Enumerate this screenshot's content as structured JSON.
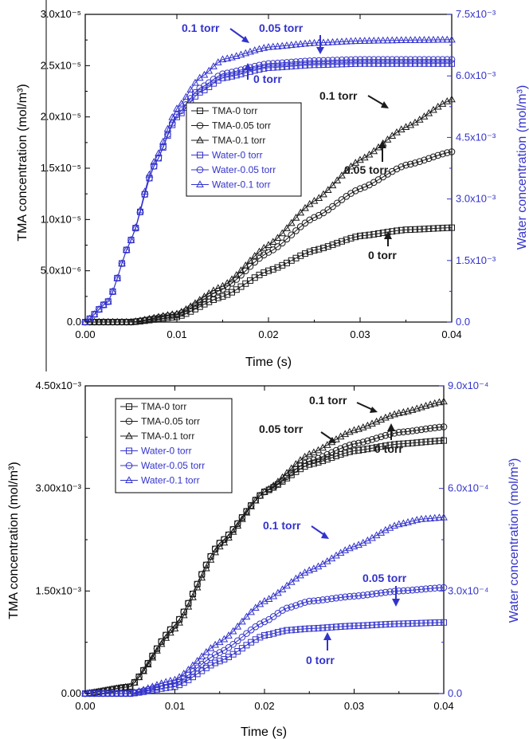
{
  "colors": {
    "tma": "#1a1a1a",
    "water": "#3333cc",
    "axis": "#000000",
    "right_axis": "#3333cc"
  },
  "chart_data": [
    {
      "type": "line",
      "xlabel": "Time (s)",
      "ylabel": "TMA concentration (mol/m³)",
      "y2label": "Water concentration (mol/m³)",
      "xlim": [
        0,
        0.04
      ],
      "x_ticks": [
        "0.00",
        "0.01",
        "0.02",
        "0.03",
        "0.04"
      ],
      "ylim": [
        0,
        3e-05
      ],
      "y_ticks": [
        "0.0",
        "5.0x10⁻⁶",
        "1.0x10⁻⁵",
        "1.5x10⁻⁵",
        "2.0x10⁻⁵",
        "2.5x10⁻⁵",
        "3.0x10⁻⁵"
      ],
      "y2lim": [
        0,
        0.0075
      ],
      "y2_ticks": [
        "0.0",
        "1.5x10⁻³",
        "3.0x10⁻³",
        "4.5x10⁻³",
        "6.0x10⁻³",
        "7.5x10⁻³"
      ],
      "grid": false,
      "legend_position": "center-left",
      "series": [
        {
          "name": "TMA-0 torr",
          "marker": "square",
          "axis": "left",
          "color": "#1a1a1a",
          "x": [
            0,
            0.005,
            0.01,
            0.015,
            0.02,
            0.025,
            0.03,
            0.035,
            0.04
          ],
          "values": [
            0,
            0,
            5e-07,
            2.5e-06,
            5e-06,
            7e-06,
            8.4e-06,
            9e-06,
            9.2e-06
          ]
        },
        {
          "name": "TMA-0.05 torr",
          "marker": "circle",
          "axis": "left",
          "color": "#1a1a1a",
          "x": [
            0,
            0.005,
            0.01,
            0.015,
            0.02,
            0.025,
            0.03,
            0.035,
            0.04
          ],
          "values": [
            0,
            0,
            7e-07,
            3.2e-06,
            6.8e-06,
            1.02e-05,
            1.3e-05,
            1.53e-05,
            1.66e-05
          ]
        },
        {
          "name": "TMA-0.1 torr",
          "marker": "triangle",
          "axis": "left",
          "color": "#1a1a1a",
          "x": [
            0,
            0.005,
            0.01,
            0.015,
            0.02,
            0.025,
            0.03,
            0.035,
            0.04
          ],
          "values": [
            0,
            0,
            8e-07,
            3.5e-06,
            7.5e-06,
            1.18e-05,
            1.58e-05,
            1.9e-05,
            2.17e-05
          ]
        },
        {
          "name": "Water-0 torr",
          "marker": "square",
          "axis": "right",
          "color": "#3333cc",
          "x": [
            0,
            0.0025,
            0.005,
            0.0075,
            0.01,
            0.0125,
            0.015,
            0.02,
            0.025,
            0.03,
            0.035,
            0.04
          ],
          "values": [
            0,
            0.0005,
            0.002,
            0.0038,
            0.005,
            0.0056,
            0.00595,
            0.0062,
            0.00627,
            0.0063,
            0.0063,
            0.0063
          ]
        },
        {
          "name": "Water-0.05 torr",
          "marker": "circle",
          "axis": "right",
          "color": "#3333cc",
          "x": [
            0,
            0.0025,
            0.005,
            0.0075,
            0.01,
            0.0125,
            0.015,
            0.02,
            0.025,
            0.03,
            0.035,
            0.04
          ],
          "values": [
            0,
            0.0005,
            0.002,
            0.0038,
            0.00505,
            0.0057,
            0.00605,
            0.0063,
            0.00637,
            0.0064,
            0.0064,
            0.0064
          ]
        },
        {
          "name": "Water-0.1 torr",
          "marker": "triangle",
          "axis": "right",
          "color": "#3333cc",
          "x": [
            0,
            0.0025,
            0.005,
            0.0075,
            0.01,
            0.0125,
            0.015,
            0.02,
            0.025,
            0.03,
            0.035,
            0.04
          ],
          "values": [
            0,
            0.0005,
            0.002,
            0.0039,
            0.0052,
            0.00595,
            0.0064,
            0.0067,
            0.0068,
            0.00685,
            0.00687,
            0.00688
          ]
        }
      ],
      "annotations": [
        {
          "text": "0.1 torr",
          "color": "#3333cc"
        },
        {
          "text": "0.05 torr",
          "color": "#3333cc"
        },
        {
          "text": "0 torr",
          "color": "#3333cc"
        },
        {
          "text": "0.1 torr",
          "color": "#1a1a1a"
        },
        {
          "text": "0.05 torr",
          "color": "#1a1a1a"
        },
        {
          "text": "0 torr",
          "color": "#1a1a1a"
        }
      ]
    },
    {
      "type": "line",
      "xlabel": "Time (s)",
      "ylabel": "TMA concentration (mol/m³)",
      "y2label": "Water concentration (mol/m³)",
      "xlim": [
        0,
        0.04
      ],
      "x_ticks": [
        "0.00",
        "0.01",
        "0.02",
        "0.03",
        "0.04"
      ],
      "ylim": [
        0,
        0.0045
      ],
      "y_ticks": [
        "0.00",
        "1.50x10⁻³",
        "3.00x10⁻³",
        "4.50x10⁻³"
      ],
      "y2lim": [
        0,
        0.0009
      ],
      "y2_ticks": [
        "0.0",
        "3.0x10⁻⁴",
        "6.0x10⁻⁴",
        "9.0x10⁻⁴"
      ],
      "grid": false,
      "legend_position": "top-left",
      "series": [
        {
          "name": "TMA-0 torr",
          "marker": "square",
          "axis": "left",
          "color": "#1a1a1a",
          "x": [
            0,
            0.005,
            0.01,
            0.015,
            0.02,
            0.025,
            0.03,
            0.035,
            0.04
          ],
          "values": [
            0,
            0.0001,
            0.001,
            0.0022,
            0.00295,
            0.00335,
            0.00355,
            0.00365,
            0.0037
          ]
        },
        {
          "name": "TMA-0.05 torr",
          "marker": "circle",
          "axis": "left",
          "color": "#1a1a1a",
          "x": [
            0,
            0.005,
            0.01,
            0.015,
            0.02,
            0.025,
            0.03,
            0.035,
            0.04
          ],
          "values": [
            0,
            0.0001,
            0.001,
            0.0022,
            0.00295,
            0.0034,
            0.00365,
            0.00382,
            0.0039
          ]
        },
        {
          "name": "TMA-0.1 torr",
          "marker": "triangle",
          "axis": "left",
          "color": "#1a1a1a",
          "x": [
            0,
            0.005,
            0.01,
            0.015,
            0.02,
            0.025,
            0.03,
            0.035,
            0.04
          ],
          "values": [
            0,
            0.0001,
            0.00095,
            0.00215,
            0.00295,
            0.0035,
            0.00385,
            0.0041,
            0.00427
          ]
        },
        {
          "name": "Water-0 torr",
          "marker": "square",
          "axis": "right",
          "color": "#3333cc",
          "x": [
            0,
            0.005,
            0.01,
            0.015,
            0.02,
            0.0225,
            0.025,
            0.03,
            0.035,
            0.04
          ],
          "values": [
            0,
            0,
            2e-05,
            9.5e-05,
            0.00017,
            0.000185,
            0.00019,
            0.000198,
            0.000204,
            0.000208
          ]
        },
        {
          "name": "Water-0.05 torr",
          "marker": "circle",
          "axis": "right",
          "color": "#3333cc",
          "x": [
            0,
            0.005,
            0.01,
            0.015,
            0.02,
            0.0225,
            0.025,
            0.03,
            0.035,
            0.04
          ],
          "values": [
            0,
            0,
            3e-05,
            0.00012,
            0.00021,
            0.00025,
            0.00027,
            0.000285,
            0.0003,
            0.00031
          ]
        },
        {
          "name": "Water-0.1 torr",
          "marker": "triangle",
          "axis": "right",
          "color": "#3333cc",
          "x": [
            0,
            0.005,
            0.01,
            0.015,
            0.02,
            0.025,
            0.03,
            0.035,
            0.0375,
            0.04
          ],
          "values": [
            0,
            0,
            4e-05,
            0.00015,
            0.00027,
            0.00036,
            0.00043,
            0.000495,
            0.00051,
            0.000515
          ]
        }
      ],
      "annotations": [
        {
          "text": "0.1 torr",
          "color": "#1a1a1a"
        },
        {
          "text": "0.05 torr",
          "color": "#1a1a1a"
        },
        {
          "text": "0 torr",
          "color": "#1a1a1a"
        },
        {
          "text": "0.1 torr",
          "color": "#3333cc"
        },
        {
          "text": "0.05 torr",
          "color": "#3333cc"
        },
        {
          "text": "0 torr",
          "color": "#3333cc"
        }
      ]
    }
  ]
}
